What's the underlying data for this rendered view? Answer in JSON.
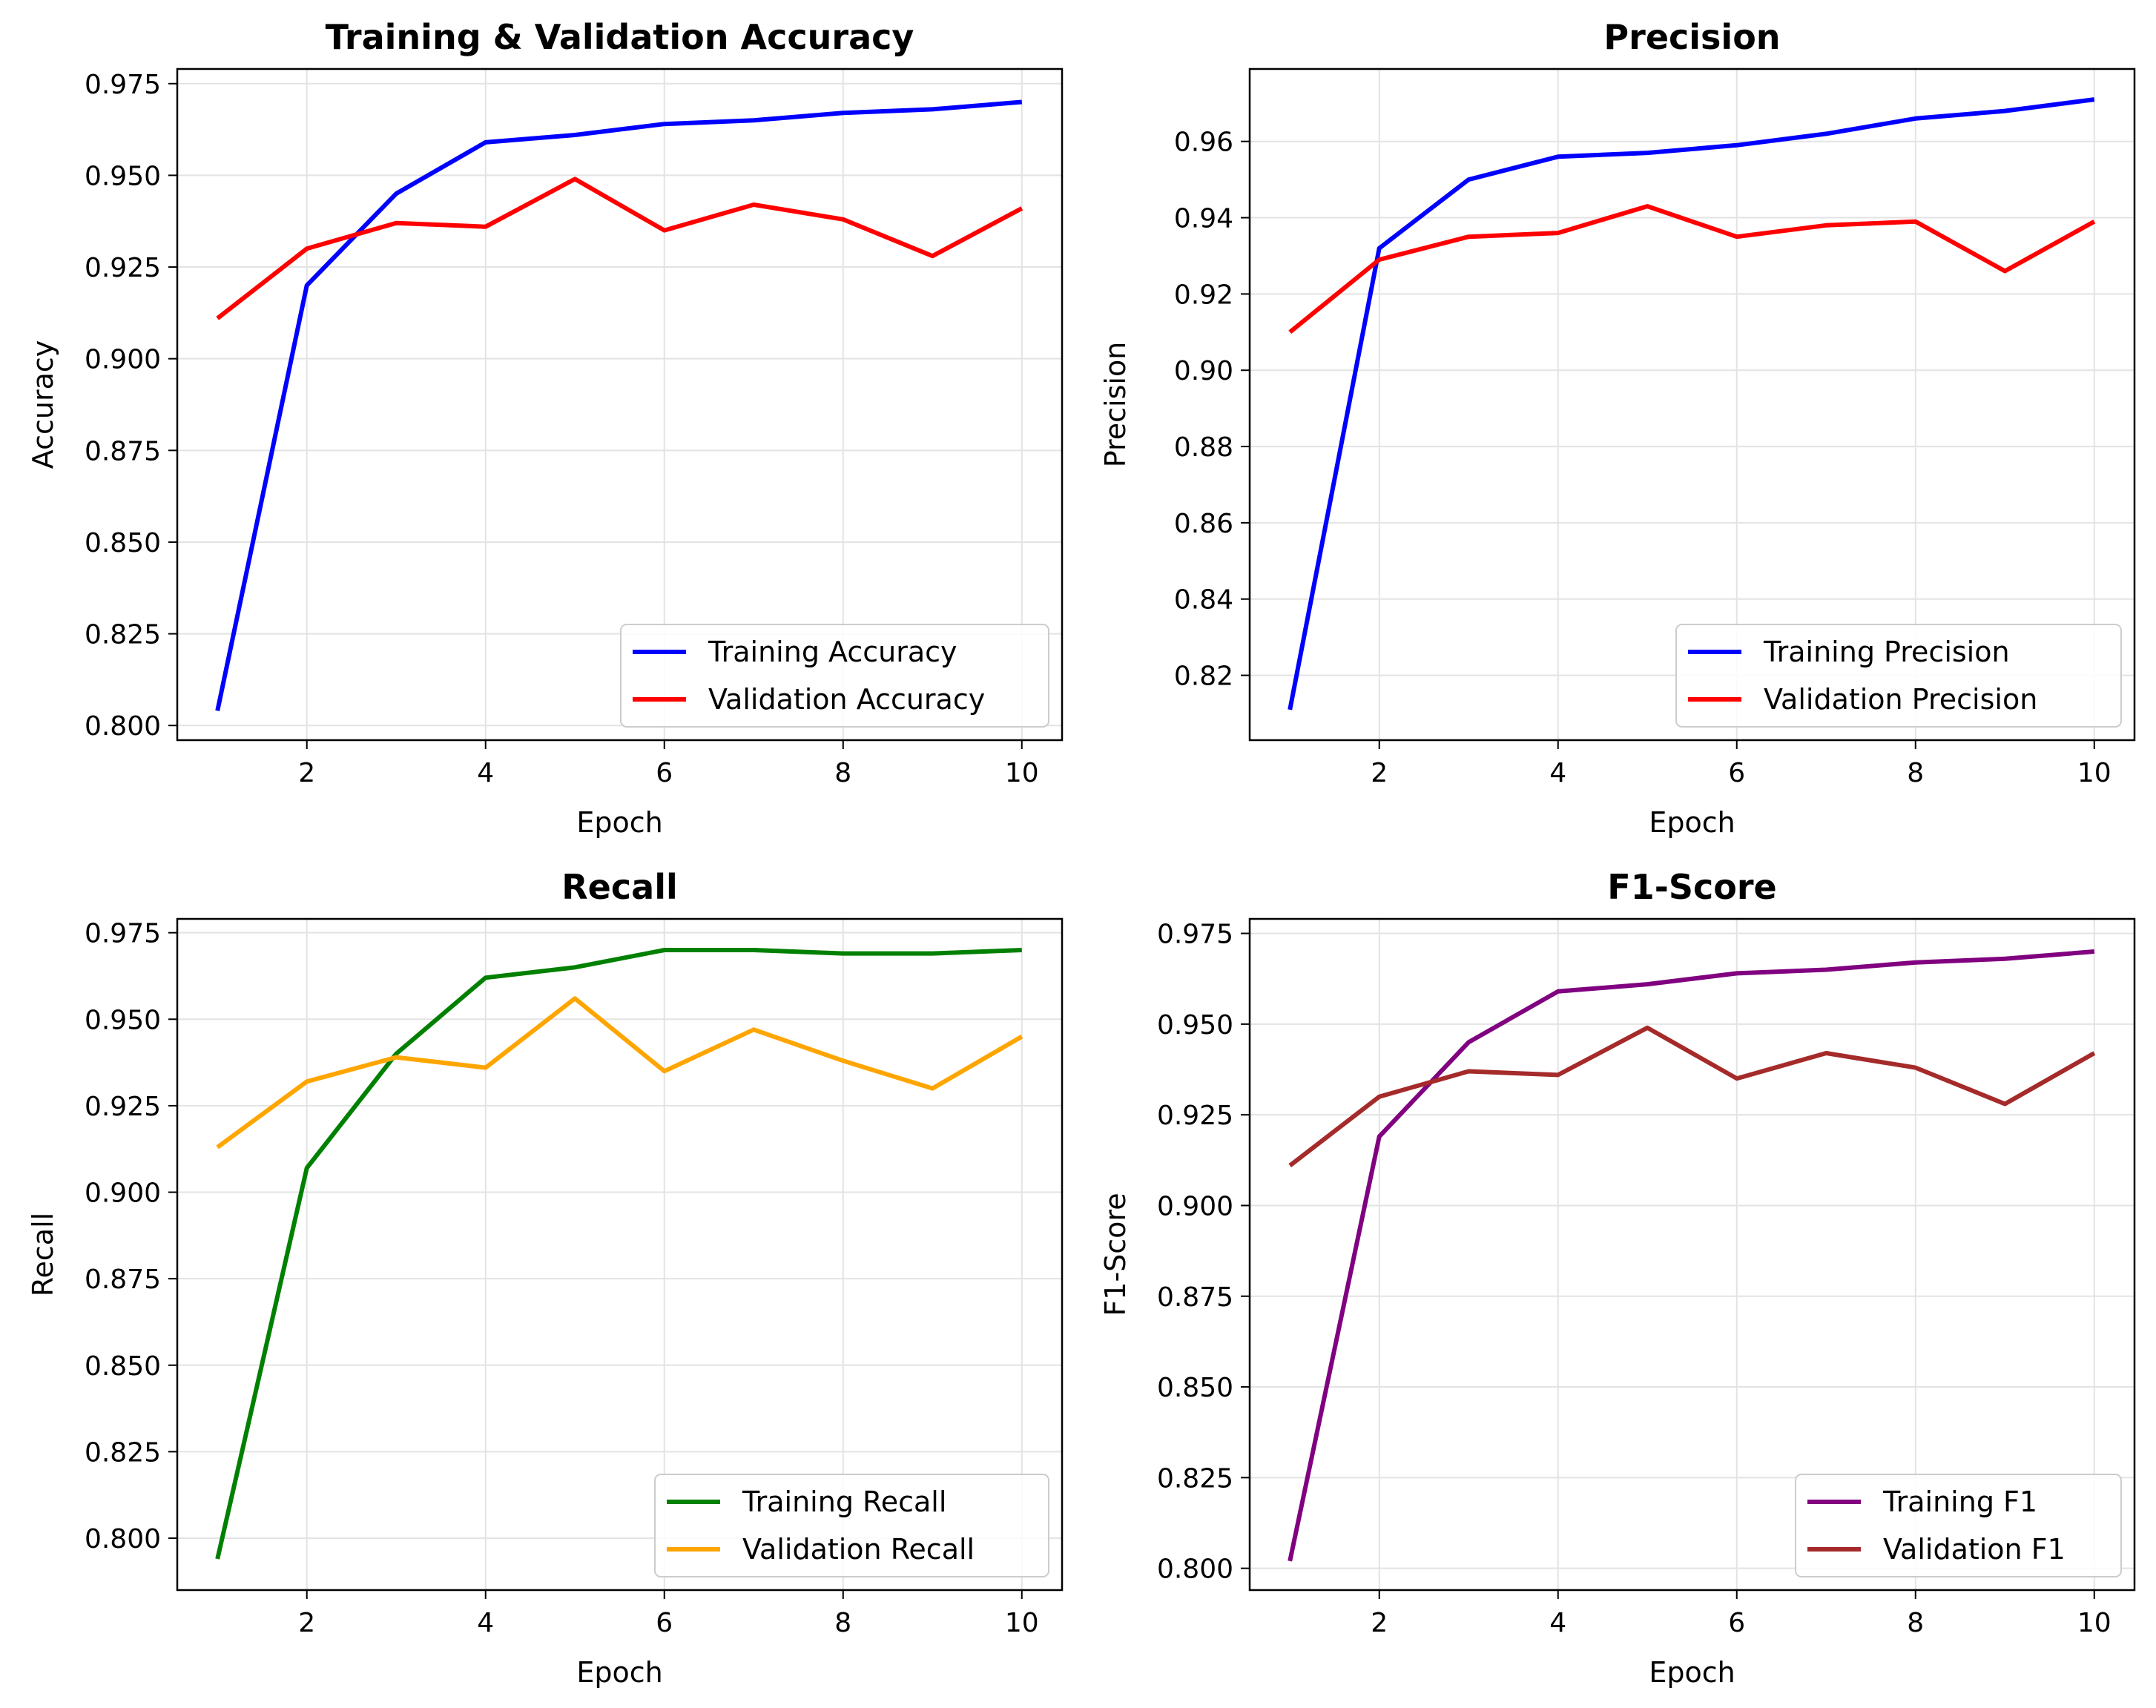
{
  "chart_data": [
    {
      "type": "line",
      "title": "Training & Validation Accuracy",
      "xlabel": "Epoch",
      "ylabel": "Accuracy",
      "x": [
        1,
        2,
        3,
        4,
        5,
        6,
        7,
        8,
        9,
        10
      ],
      "xlim": [
        0.55,
        10.45
      ],
      "ylim": [
        0.796,
        0.979
      ],
      "xticks": [
        2,
        4,
        6,
        8,
        10
      ],
      "xtick_labels": [
        "2",
        "4",
        "6",
        "8",
        "10"
      ],
      "yticks": [
        0.8,
        0.825,
        0.85,
        0.875,
        0.9,
        0.925,
        0.95,
        0.975
      ],
      "ytick_labels": [
        "0.800",
        "0.825",
        "0.850",
        "0.875",
        "0.900",
        "0.925",
        "0.950",
        "0.975"
      ],
      "grid": true,
      "legend_position": "lower-right",
      "series": [
        {
          "name": "Training Accuracy",
          "color": "#0000ff",
          "values": [
            0.804,
            0.92,
            0.945,
            0.959,
            0.961,
            0.964,
            0.965,
            0.967,
            0.968,
            0.97
          ]
        },
        {
          "name": "Validation Accuracy",
          "color": "#ff0000",
          "values": [
            0.911,
            0.93,
            0.937,
            0.936,
            0.949,
            0.935,
            0.942,
            0.938,
            0.928,
            0.941
          ]
        }
      ]
    },
    {
      "type": "line",
      "title": "Precision",
      "xlabel": "Epoch",
      "ylabel": "Precision",
      "x": [
        1,
        2,
        3,
        4,
        5,
        6,
        7,
        8,
        9,
        10
      ],
      "xlim": [
        0.55,
        10.45
      ],
      "ylim": [
        0.803,
        0.979
      ],
      "xticks": [
        2,
        4,
        6,
        8,
        10
      ],
      "xtick_labels": [
        "2",
        "4",
        "6",
        "8",
        "10"
      ],
      "yticks": [
        0.82,
        0.84,
        0.86,
        0.88,
        0.9,
        0.92,
        0.94,
        0.96
      ],
      "ytick_labels": [
        "0.82",
        "0.84",
        "0.86",
        "0.88",
        "0.90",
        "0.92",
        "0.94",
        "0.96"
      ],
      "grid": true,
      "legend_position": "lower-right",
      "series": [
        {
          "name": "Training Precision",
          "color": "#0000ff",
          "values": [
            0.811,
            0.932,
            0.95,
            0.956,
            0.957,
            0.959,
            0.962,
            0.966,
            0.968,
            0.971
          ]
        },
        {
          "name": "Validation Precision",
          "color": "#ff0000",
          "values": [
            0.91,
            0.929,
            0.935,
            0.936,
            0.943,
            0.935,
            0.938,
            0.939,
            0.926,
            0.939
          ]
        }
      ]
    },
    {
      "type": "line",
      "title": "Recall",
      "xlabel": "Epoch",
      "ylabel": "Recall",
      "x": [
        1,
        2,
        3,
        4,
        5,
        6,
        7,
        8,
        9,
        10
      ],
      "xlim": [
        0.55,
        10.45
      ],
      "ylim": [
        0.785,
        0.979
      ],
      "xticks": [
        2,
        4,
        6,
        8,
        10
      ],
      "xtick_labels": [
        "2",
        "4",
        "6",
        "8",
        "10"
      ],
      "yticks": [
        0.8,
        0.825,
        0.85,
        0.875,
        0.9,
        0.925,
        0.95,
        0.975
      ],
      "ytick_labels": [
        "0.800",
        "0.825",
        "0.850",
        "0.875",
        "0.900",
        "0.925",
        "0.950",
        "0.975"
      ],
      "grid": true,
      "legend_position": "lower-right",
      "series": [
        {
          "name": "Training Recall",
          "color": "#008000",
          "values": [
            0.794,
            0.907,
            0.94,
            0.962,
            0.965,
            0.97,
            0.97,
            0.969,
            0.969,
            0.97
          ]
        },
        {
          "name": "Validation Recall",
          "color": "#ffa500",
          "values": [
            0.913,
            0.932,
            0.939,
            0.936,
            0.956,
            0.935,
            0.947,
            0.938,
            0.93,
            0.945
          ]
        }
      ]
    },
    {
      "type": "line",
      "title": "F1-Score",
      "xlabel": "Epoch",
      "ylabel": "F1-Score",
      "x": [
        1,
        2,
        3,
        4,
        5,
        6,
        7,
        8,
        9,
        10
      ],
      "xlim": [
        0.55,
        10.45
      ],
      "ylim": [
        0.794,
        0.979
      ],
      "xticks": [
        2,
        4,
        6,
        8,
        10
      ],
      "xtick_labels": [
        "2",
        "4",
        "6",
        "8",
        "10"
      ],
      "yticks": [
        0.8,
        0.825,
        0.85,
        0.875,
        0.9,
        0.925,
        0.95,
        0.975
      ],
      "ytick_labels": [
        "0.800",
        "0.825",
        "0.850",
        "0.875",
        "0.900",
        "0.925",
        "0.950",
        "0.975"
      ],
      "grid": true,
      "legend_position": "lower-right",
      "series": [
        {
          "name": "Training F1",
          "color": "#800080",
          "values": [
            0.802,
            0.919,
            0.945,
            0.959,
            0.961,
            0.964,
            0.965,
            0.967,
            0.968,
            0.97
          ]
        },
        {
          "name": "Validation F1",
          "color": "#a52a2a",
          "values": [
            0.911,
            0.93,
            0.937,
            0.936,
            0.949,
            0.935,
            0.942,
            0.938,
            0.928,
            0.942
          ]
        }
      ]
    }
  ]
}
